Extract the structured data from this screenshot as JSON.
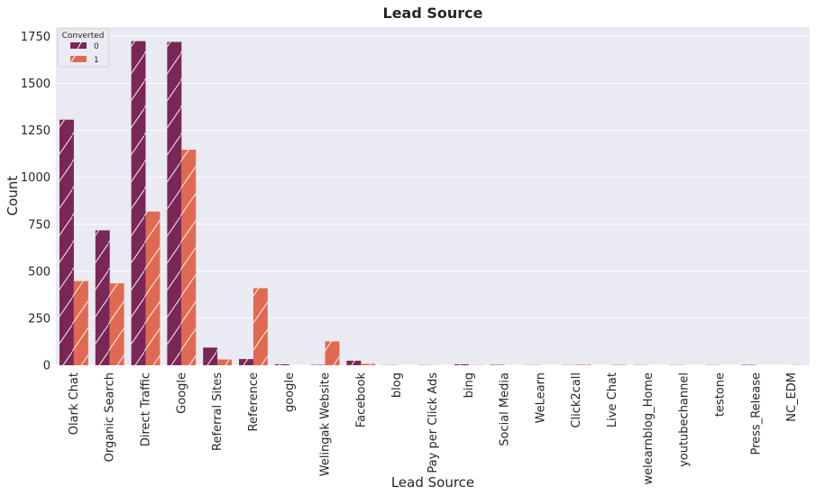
{
  "chart_data": {
    "type": "bar",
    "title": "Lead Source",
    "xlabel": "Lead Source",
    "ylabel": "Count",
    "ylim": [
      0,
      1800
    ],
    "yticks": [
      0,
      250,
      500,
      750,
      1000,
      1250,
      1500,
      1750
    ],
    "grid": true,
    "legend": {
      "title": "Converted",
      "placement": "top-left"
    },
    "categories": [
      "Olark Chat",
      "Organic Search",
      "Direct Traffic",
      "Google",
      "Referral Sites",
      "Reference",
      "google",
      "Welingak Website",
      "Facebook",
      "blog",
      "Pay per Click Ads",
      "bing",
      "Social Media",
      "WeLearn",
      "Click2call",
      "Live Chat",
      "welearnblog_Home",
      "youtubechannel",
      "testone",
      "Press_Release",
      "NC_EDM"
    ],
    "series": [
      {
        "name": "0",
        "color": "#7a2757",
        "values": [
          1307,
          718,
          1725,
          1721,
          94,
          33,
          5,
          2,
          24,
          1,
          1,
          5,
          2,
          1,
          1,
          0,
          1,
          1,
          1,
          2,
          0
        ]
      },
      {
        "name": "1",
        "color": "#e06a51",
        "values": [
          448,
          436,
          818,
          1147,
          31,
          410,
          0,
          127,
          7,
          0,
          0,
          1,
          0,
          0,
          3,
          2,
          0,
          0,
          0,
          0,
          1
        ]
      }
    ]
  }
}
